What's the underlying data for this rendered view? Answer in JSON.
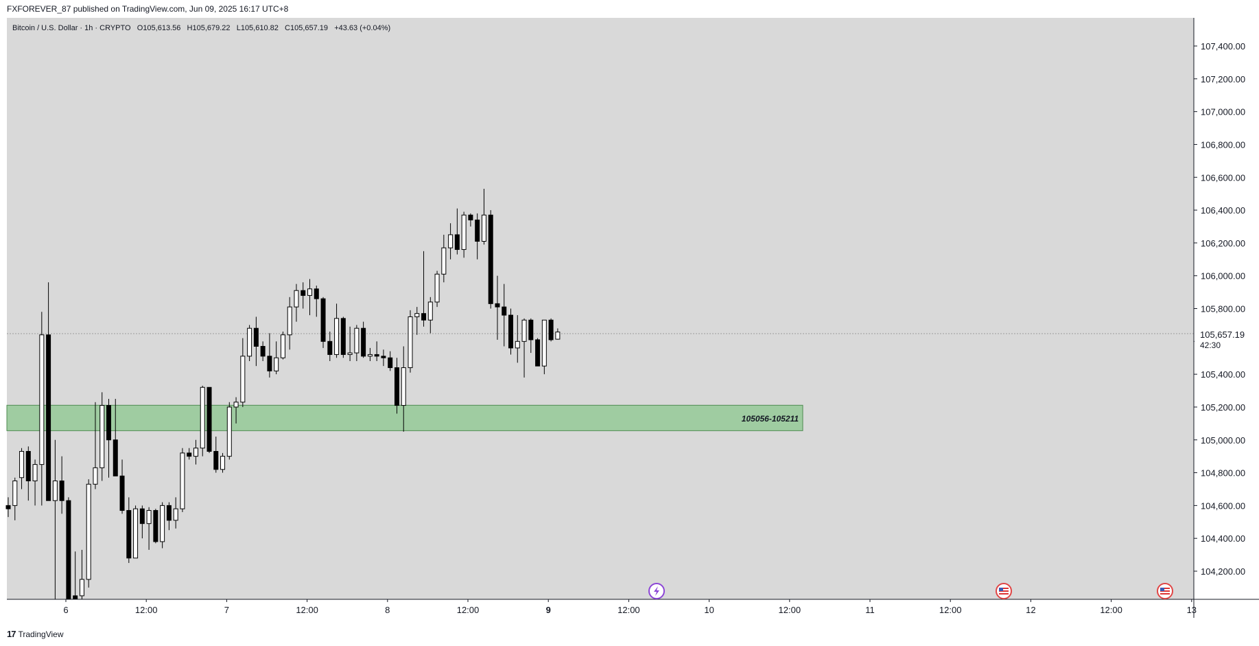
{
  "header": {
    "published": "FXFOREVER_87 published on TradingView.com, Jun 09, 2025 16:17 UTC+8"
  },
  "symbol": {
    "info": "Bitcoin / U.S. Dollar · 1h · CRYPTO   O105,613.56   H105,679.22   L105,610.82   C105,657.19   +43.63 (+0.04%)"
  },
  "footer": {
    "brand": "TradingView",
    "logo": "17"
  },
  "price_tag": {
    "price": "105,657.19",
    "countdown": "42:30"
  },
  "colors": {
    "background": "#d9d9d9",
    "zone_fill": "#9ccb9e",
    "zone_stroke": "#4d8a50",
    "up_candle": "#ffffff",
    "down_candle": "#000000"
  },
  "icons": [
    "lightning-event-icon",
    "us-flag-event-icon",
    "us-flag-event-icon"
  ],
  "chart_data": {
    "type": "candlestick",
    "title": "Bitcoin / U.S. Dollar · 1h · CRYPTO",
    "ylim": [
      104000,
      107600
    ],
    "y_ticks": [
      "107,400.00",
      "107,200.00",
      "107,000.00",
      "106,800.00",
      "106,600.00",
      "106,400.00",
      "106,200.00",
      "106,000.00",
      "105,800.00",
      "105,600.00",
      "105,400.00",
      "105,200.00",
      "105,000.00",
      "104,800.00",
      "104,600.00",
      "104,400.00",
      "104,200.00"
    ],
    "x_ticks": [
      {
        "label": "6",
        "bold": false
      },
      {
        "label": "12:00",
        "bold": false
      },
      {
        "label": "7",
        "bold": false
      },
      {
        "label": "12:00",
        "bold": false
      },
      {
        "label": "8",
        "bold": false
      },
      {
        "label": "12:00",
        "bold": false
      },
      {
        "label": "9",
        "bold": true
      },
      {
        "label": "12:00",
        "bold": false
      },
      {
        "label": "10",
        "bold": false
      },
      {
        "label": "12:00",
        "bold": false
      },
      {
        "label": "11",
        "bold": false
      },
      {
        "label": "12:00",
        "bold": false
      },
      {
        "label": "12",
        "bold": false
      },
      {
        "label": "12:00",
        "bold": false
      },
      {
        "label": "13",
        "bold": false
      }
    ],
    "zone": {
      "label": "105056-105211",
      "low": 105056,
      "high": 105211
    },
    "last_price": 105657.19,
    "candles": [
      {
        "o": 104600,
        "h": 104650,
        "l": 104530,
        "c": 104580
      },
      {
        "o": 104600,
        "h": 104770,
        "l": 104510,
        "c": 104750
      },
      {
        "o": 104770,
        "h": 104950,
        "l": 104700,
        "c": 104930
      },
      {
        "o": 104930,
        "h": 104960,
        "l": 104630,
        "c": 104750
      },
      {
        "o": 104750,
        "h": 104880,
        "l": 104600,
        "c": 104850
      },
      {
        "o": 104850,
        "h": 105780,
        "l": 104600,
        "c": 105640
      },
      {
        "o": 105640,
        "h": 105960,
        "l": 104630,
        "c": 104630
      },
      {
        "o": 104630,
        "h": 105000,
        "l": 104000,
        "c": 104750
      },
      {
        "o": 104750,
        "h": 104900,
        "l": 104550,
        "c": 104630
      },
      {
        "o": 104630,
        "h": 104650,
        "l": 104000,
        "c": 104000
      },
      {
        "o": 104050,
        "h": 104320,
        "l": 103900,
        "c": 104000
      },
      {
        "o": 104050,
        "h": 104330,
        "l": 104000,
        "c": 104150
      },
      {
        "o": 104150,
        "h": 104760,
        "l": 104100,
        "c": 104730
      },
      {
        "o": 104730,
        "h": 105230,
        "l": 104700,
        "c": 104830
      },
      {
        "o": 104830,
        "h": 105290,
        "l": 104750,
        "c": 105210
      },
      {
        "o": 105210,
        "h": 105250,
        "l": 104770,
        "c": 105000
      },
      {
        "o": 105000,
        "h": 105250,
        "l": 104780,
        "c": 104780
      },
      {
        "o": 104780,
        "h": 104880,
        "l": 104550,
        "c": 104570
      },
      {
        "o": 104570,
        "h": 104650,
        "l": 104250,
        "c": 104280
      },
      {
        "o": 104280,
        "h": 104600,
        "l": 104280,
        "c": 104580
      },
      {
        "o": 104580,
        "h": 104600,
        "l": 104400,
        "c": 104490
      },
      {
        "o": 104490,
        "h": 104590,
        "l": 104330,
        "c": 104570
      },
      {
        "o": 104570,
        "h": 104580,
        "l": 104370,
        "c": 104380
      },
      {
        "o": 104380,
        "h": 104620,
        "l": 104340,
        "c": 104600
      },
      {
        "o": 104600,
        "h": 104620,
        "l": 104450,
        "c": 104510
      },
      {
        "o": 104510,
        "h": 104650,
        "l": 104460,
        "c": 104580
      },
      {
        "o": 104580,
        "h": 104950,
        "l": 104560,
        "c": 104920
      },
      {
        "o": 104920,
        "h": 104950,
        "l": 104880,
        "c": 104900
      },
      {
        "o": 104900,
        "h": 105000,
        "l": 104850,
        "c": 104950
      },
      {
        "o": 104950,
        "h": 105330,
        "l": 104900,
        "c": 105320
      },
      {
        "o": 105320,
        "h": 105320,
        "l": 104920,
        "c": 104930
      },
      {
        "o": 104930,
        "h": 105020,
        "l": 104800,
        "c": 104820
      },
      {
        "o": 104820,
        "h": 104920,
        "l": 104800,
        "c": 104900
      },
      {
        "o": 104900,
        "h": 105230,
        "l": 104880,
        "c": 105200
      },
      {
        "o": 105200,
        "h": 105260,
        "l": 105100,
        "c": 105230
      },
      {
        "o": 105230,
        "h": 105620,
        "l": 105200,
        "c": 105510
      },
      {
        "o": 105510,
        "h": 105700,
        "l": 105480,
        "c": 105680
      },
      {
        "o": 105680,
        "h": 105750,
        "l": 105450,
        "c": 105570
      },
      {
        "o": 105570,
        "h": 105600,
        "l": 105480,
        "c": 105510
      },
      {
        "o": 105510,
        "h": 105650,
        "l": 105380,
        "c": 105420
      },
      {
        "o": 105420,
        "h": 105600,
        "l": 105400,
        "c": 105500
      },
      {
        "o": 105500,
        "h": 105660,
        "l": 105490,
        "c": 105640
      },
      {
        "o": 105640,
        "h": 105870,
        "l": 105550,
        "c": 105810
      },
      {
        "o": 105810,
        "h": 105950,
        "l": 105720,
        "c": 105910
      },
      {
        "o": 105910,
        "h": 105960,
        "l": 105800,
        "c": 105880
      },
      {
        "o": 105880,
        "h": 105980,
        "l": 105760,
        "c": 105920
      },
      {
        "o": 105920,
        "h": 105940,
        "l": 105750,
        "c": 105860
      },
      {
        "o": 105860,
        "h": 105870,
        "l": 105560,
        "c": 105600
      },
      {
        "o": 105600,
        "h": 105660,
        "l": 105480,
        "c": 105520
      },
      {
        "o": 105520,
        "h": 105830,
        "l": 105500,
        "c": 105740
      },
      {
        "o": 105740,
        "h": 105750,
        "l": 105500,
        "c": 105520
      },
      {
        "o": 105520,
        "h": 105690,
        "l": 105480,
        "c": 105530
      },
      {
        "o": 105530,
        "h": 105700,
        "l": 105480,
        "c": 105680
      },
      {
        "o": 105680,
        "h": 105720,
        "l": 105500,
        "c": 105510
      },
      {
        "o": 105510,
        "h": 105560,
        "l": 105480,
        "c": 105520
      },
      {
        "o": 105520,
        "h": 105600,
        "l": 105480,
        "c": 105510
      },
      {
        "o": 105510,
        "h": 105550,
        "l": 105450,
        "c": 105500
      },
      {
        "o": 105500,
        "h": 105540,
        "l": 105420,
        "c": 105440
      },
      {
        "o": 105440,
        "h": 105500,
        "l": 105160,
        "c": 105210
      },
      {
        "o": 105210,
        "h": 105570,
        "l": 105050,
        "c": 105440
      },
      {
        "o": 105440,
        "h": 105790,
        "l": 105410,
        "c": 105750
      },
      {
        "o": 105750,
        "h": 105810,
        "l": 105640,
        "c": 105770
      },
      {
        "o": 105770,
        "h": 106150,
        "l": 105690,
        "c": 105730
      },
      {
        "o": 105730,
        "h": 105870,
        "l": 105650,
        "c": 105840
      },
      {
        "o": 105840,
        "h": 106030,
        "l": 105810,
        "c": 106010
      },
      {
        "o": 106010,
        "h": 106250,
        "l": 105960,
        "c": 106170
      },
      {
        "o": 106170,
        "h": 106320,
        "l": 106100,
        "c": 106250
      },
      {
        "o": 106250,
        "h": 106410,
        "l": 106130,
        "c": 106160
      },
      {
        "o": 106160,
        "h": 106390,
        "l": 106110,
        "c": 106370
      },
      {
        "o": 106370,
        "h": 106380,
        "l": 106300,
        "c": 106340
      },
      {
        "o": 106340,
        "h": 106380,
        "l": 106100,
        "c": 106210
      },
      {
        "o": 106210,
        "h": 106530,
        "l": 106190,
        "c": 106370
      },
      {
        "o": 106370,
        "h": 106400,
        "l": 105800,
        "c": 105830
      },
      {
        "o": 105830,
        "h": 106000,
        "l": 105610,
        "c": 105810
      },
      {
        "o": 105810,
        "h": 105950,
        "l": 105570,
        "c": 105760
      },
      {
        "o": 105760,
        "h": 105800,
        "l": 105520,
        "c": 105560
      },
      {
        "o": 105560,
        "h": 105760,
        "l": 105470,
        "c": 105600
      },
      {
        "o": 105600,
        "h": 105740,
        "l": 105380,
        "c": 105730
      },
      {
        "o": 105730,
        "h": 105740,
        "l": 105530,
        "c": 105610
      },
      {
        "o": 105610,
        "h": 105620,
        "l": 105450,
        "c": 105450
      },
      {
        "o": 105450,
        "h": 105720,
        "l": 105400,
        "c": 105730
      },
      {
        "o": 105730,
        "h": 105740,
        "l": 105600,
        "c": 105610
      },
      {
        "o": 105613.56,
        "h": 105679.22,
        "l": 105610.82,
        "c": 105657.19
      }
    ]
  }
}
